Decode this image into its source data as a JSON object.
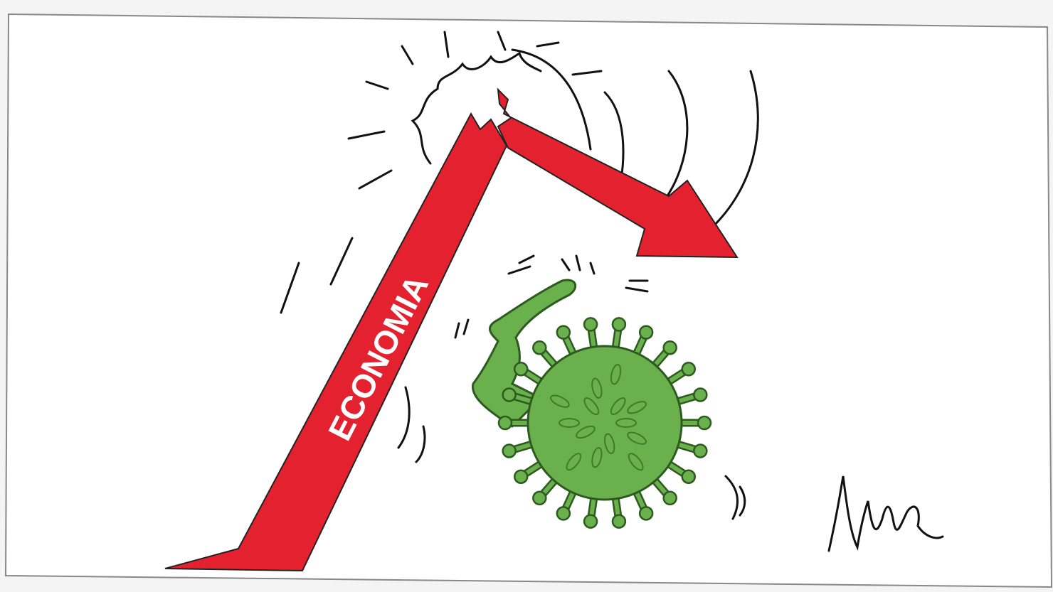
{
  "label": "ECONOMIA"
}
